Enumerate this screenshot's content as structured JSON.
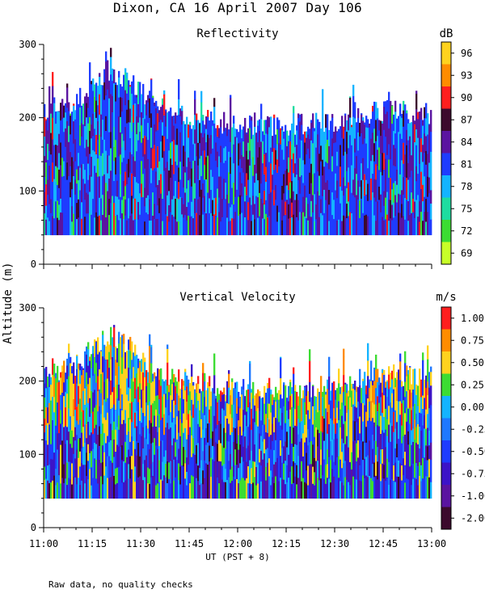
{
  "title": "Dixon, CA 16 April 2007  Day 106",
  "ylabel": "Altitude (m)",
  "xlabel": "UT  (PST + 8)",
  "footnote": "Raw data, no quality checks",
  "chart_data": [
    {
      "type": "heatmap",
      "title": "Reflectivity",
      "units": "dB",
      "xlabel": "UT  (PST + 8)",
      "ylabel": "Altitude (m)",
      "x_ticks": [
        "11:00",
        "11:15",
        "11:30",
        "11:45",
        "12:00",
        "12:15",
        "12:30",
        "12:45",
        "13:00"
      ],
      "y_ticks": [
        0,
        100,
        200,
        300
      ],
      "xlim": [
        "11:00",
        "13:00"
      ],
      "ylim": [
        0,
        300
      ],
      "data_altitude_range": [
        40,
        280
      ],
      "echo_top_approx": [
        {
          "time": "11:00",
          "top": 210
        },
        {
          "time": "11:10",
          "top": 220
        },
        {
          "time": "11:15",
          "top": 245
        },
        {
          "time": "11:20",
          "top": 265
        },
        {
          "time": "11:25",
          "top": 255
        },
        {
          "time": "11:30",
          "top": 235
        },
        {
          "time": "11:35",
          "top": 215
        },
        {
          "time": "11:45",
          "top": 200
        },
        {
          "time": "12:00",
          "top": 190
        },
        {
          "time": "12:15",
          "top": 190
        },
        {
          "time": "12:30",
          "top": 195
        },
        {
          "time": "12:45",
          "top": 210
        },
        {
          "time": "13:00",
          "top": 205
        }
      ],
      "colorbar": {
        "labels": [
          "96",
          "93",
          "90",
          "87",
          "84",
          "81",
          "78",
          "75",
          "72",
          "69"
        ],
        "colors": [
          "#ffd21e",
          "#ff8c00",
          "#ff1e1e",
          "#3c0a2d",
          "#5a14a0",
          "#1e3cff",
          "#14b4ff",
          "#1edca0",
          "#3cdc32",
          "#c8ff28"
        ]
      }
    },
    {
      "type": "heatmap",
      "title": "Vertical Velocity",
      "units": "m/s",
      "xlabel": "UT  (PST + 8)",
      "ylabel": "Altitude (m)",
      "x_ticks": [
        "11:00",
        "11:15",
        "11:30",
        "11:45",
        "12:00",
        "12:15",
        "12:30",
        "12:45",
        "13:00"
      ],
      "y_ticks": [
        0,
        100,
        200,
        300
      ],
      "xlim": [
        "11:00",
        "13:00"
      ],
      "ylim": [
        0,
        300
      ],
      "data_altitude_range": [
        40,
        280
      ],
      "colorbar": {
        "labels": [
          "1.00",
          "0.75",
          "0.50",
          "0.25",
          "0.00",
          "-0.25",
          "-0.50",
          "-0.75",
          "-1.00",
          "-2.00"
        ],
        "colors": [
          "#ff1e1e",
          "#ff8c00",
          "#ffd21e",
          "#3cdc32",
          "#14b4ff",
          "#1e78ff",
          "#1e3cff",
          "#3c14c8",
          "#5a14a0",
          "#3c0a2d"
        ]
      }
    }
  ]
}
